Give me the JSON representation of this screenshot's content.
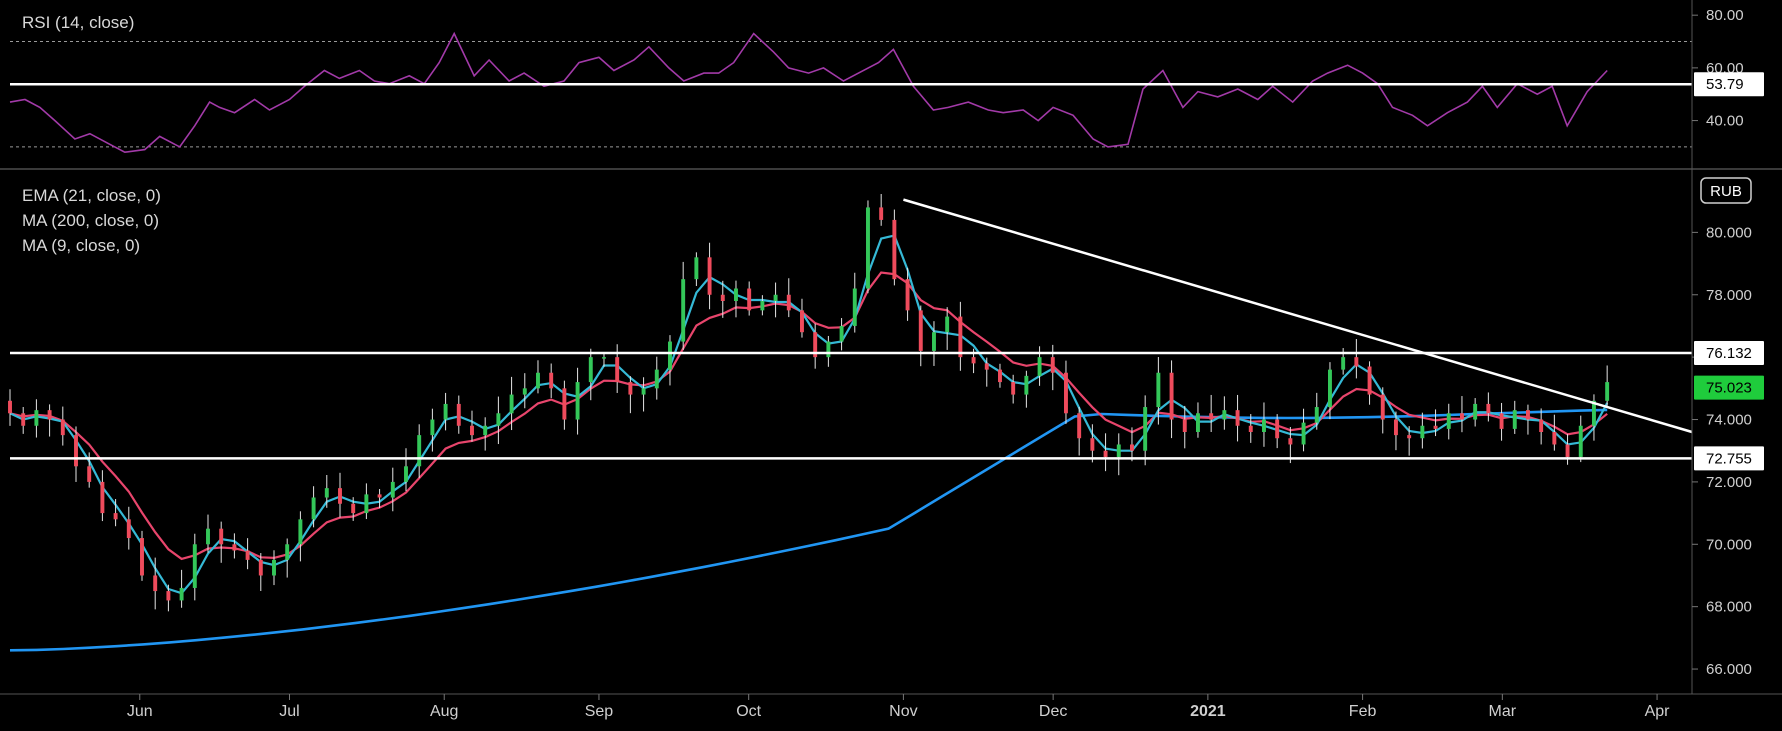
{
  "chart_data": [
    {
      "type": "line",
      "panel": "rsi",
      "indicator_label": "RSI (14, close)",
      "ylim": [
        22,
        85
      ],
      "y_ticks": [
        "80.00",
        "60.00",
        "40.00"
      ],
      "y_tick_values": [
        80,
        60,
        40
      ],
      "upper_band": 70,
      "lower_band": 30,
      "level_line": {
        "value": 53.79,
        "label": "53.79"
      },
      "line_color": "#a23aa8",
      "series": [
        {
          "x": [
            "2020-05-06",
            "2020-05-09",
            "2020-05-12",
            "2020-05-15",
            "2020-05-19",
            "2020-05-22",
            "2020-05-26",
            "2020-05-29",
            "2020-06-02",
            "2020-06-05",
            "2020-06-09",
            "2020-06-12",
            "2020-06-15",
            "2020-06-17",
            "2020-06-20",
            "2020-06-24",
            "2020-06-27",
            "2020-07-01",
            "2020-07-04",
            "2020-07-08",
            "2020-07-11",
            "2020-07-15",
            "2020-07-18",
            "2020-07-21",
            "2020-07-25",
            "2020-07-28",
            "2020-07-31",
            "2020-08-03",
            "2020-08-07",
            "2020-08-10",
            "2020-08-14",
            "2020-08-17",
            "2020-08-21",
            "2020-08-25",
            "2020-08-28",
            "2020-09-01",
            "2020-09-04",
            "2020-09-08",
            "2020-09-11",
            "2020-09-15",
            "2020-09-18",
            "2020-09-22",
            "2020-09-25",
            "2020-09-28",
            "2020-10-02",
            "2020-10-06",
            "2020-10-09",
            "2020-10-13",
            "2020-10-16",
            "2020-10-20",
            "2020-10-23",
            "2020-10-27",
            "2020-10-30",
            "2020-11-03",
            "2020-11-07",
            "2020-11-10",
            "2020-11-14",
            "2020-11-18",
            "2020-11-21",
            "2020-11-25",
            "2020-11-28",
            "2020-12-01",
            "2020-12-05",
            "2020-12-09",
            "2020-12-12",
            "2020-12-16",
            "2020-12-19",
            "2020-12-23",
            "2020-12-27",
            "2020-12-30",
            "2021-01-03",
            "2021-01-07",
            "2021-01-11",
            "2021-01-14",
            "2021-01-18",
            "2021-01-22",
            "2021-01-25",
            "2021-01-29",
            "2021-02-01",
            "2021-02-04",
            "2021-02-07",
            "2021-02-11",
            "2021-02-14",
            "2021-02-18",
            "2021-02-22",
            "2021-02-25",
            "2021-02-28",
            "2021-03-04",
            "2021-03-08",
            "2021-03-11",
            "2021-03-14",
            "2021-03-18",
            "2021-03-22"
          ],
          "y": [
            47,
            48,
            45,
            40,
            33,
            35,
            31,
            28,
            29,
            34,
            30,
            38,
            47,
            45,
            43,
            48,
            44,
            48,
            53,
            59,
            56,
            59,
            55,
            54,
            57,
            54,
            62,
            73,
            57,
            63,
            55,
            58,
            53,
            55,
            62,
            64,
            59,
            63,
            68,
            60,
            55,
            58,
            58,
            62,
            73,
            66,
            60,
            58,
            60,
            55,
            58,
            62,
            67,
            53,
            44,
            45,
            47,
            44,
            43,
            44,
            40,
            45,
            42,
            33,
            30,
            31,
            52,
            59,
            45,
            51,
            49,
            52,
            48,
            53,
            47,
            55,
            58,
            61,
            58,
            54,
            45,
            42,
            38,
            43,
            47,
            53,
            45,
            54,
            50,
            53,
            38,
            51,
            59
          ]
        }
      ]
    },
    {
      "type": "candlestick",
      "panel": "price",
      "indicator_labels": [
        "EMA (21, close, 0)",
        "MA (200, close, 0)",
        "MA (9, close, 0)"
      ],
      "currency": "RUB",
      "ylim": [
        65.2,
        82.0
      ],
      "y_ticks": [
        "80.000",
        "78.000",
        "76.000",
        "74.000",
        "72.000",
        "70.000",
        "68.000",
        "66.000"
      ],
      "y_tick_values": [
        80,
        78,
        76,
        74,
        72,
        70,
        68,
        66
      ],
      "x_ticks": [
        {
          "label": "Jun",
          "x": "2020-06-01"
        },
        {
          "label": "Jul",
          "x": "2020-07-01"
        },
        {
          "label": "Aug",
          "x": "2020-08-01"
        },
        {
          "label": "Sep",
          "x": "2020-09-01"
        },
        {
          "label": "Oct",
          "x": "2020-10-01"
        },
        {
          "label": "Nov",
          "x": "2020-11-01"
        },
        {
          "label": "Dec",
          "x": "2020-12-01"
        },
        {
          "label": "2021",
          "x": "2021-01-01"
        },
        {
          "label": "Feb",
          "x": "2021-02-01"
        },
        {
          "label": "Mar",
          "x": "2021-03-01"
        },
        {
          "label": "Apr",
          "x": "2021-04-01"
        }
      ],
      "x_range": [
        "2020-05-06",
        "2021-04-08"
      ],
      "levels": [
        {
          "value": 76.132,
          "label": "76.132"
        },
        {
          "value": 72.755,
          "label": "72.755"
        }
      ],
      "last_price": {
        "value": 75.023,
        "label": "75.023"
      },
      "trendline": {
        "x": [
          "2020-11-01",
          "2021-04-08"
        ],
        "y": [
          81.05,
          73.6
        ]
      },
      "colors": {
        "up": "#34c759",
        "down": "#ef4b5c",
        "ema21": "#e8456c",
        "ma200": "#2196f3",
        "ma9": "#35b9d6",
        "last": "#1fcc3c"
      },
      "candles_close": [
        74.2,
        73.8,
        74.3,
        74.0,
        73.5,
        72.5,
        72.0,
        71.0,
        70.8,
        70.2,
        69.0,
        68.5,
        68.2,
        68.6,
        70.0,
        70.5,
        70.0,
        69.8,
        69.5,
        69.0,
        69.5,
        70.0,
        70.8,
        71.5,
        71.8,
        71.3,
        71.0,
        71.6,
        71.5,
        72.0,
        72.5,
        73.5,
        74.0,
        74.5,
        73.8,
        73.5,
        73.8,
        74.2,
        74.8,
        75.0,
        75.5,
        75.0,
        74.0,
        75.2,
        76.0,
        76.0,
        75.2,
        74.8,
        75.0,
        75.6,
        76.5,
        78.5,
        79.2,
        78.0,
        77.8,
        78.2,
        77.5,
        77.8,
        78.0,
        77.5,
        76.8,
        76.0,
        76.5,
        77.0,
        78.2,
        80.8,
        80.4,
        78.5,
        77.5,
        76.2,
        76.8,
        77.3,
        76.0,
        75.8,
        75.6,
        75.2,
        74.8,
        75.4,
        76.0,
        75.5,
        74.2,
        73.4,
        73.0,
        72.8,
        73.2,
        73.0,
        74.4,
        75.5,
        74.0,
        73.6,
        74.2,
        74.0,
        74.3,
        73.8,
        73.6,
        74.0,
        73.4,
        73.2,
        73.9,
        74.4,
        75.6,
        76.0,
        75.7,
        74.8,
        74.0,
        73.5,
        73.4,
        73.8,
        73.7,
        74.2,
        74.0,
        74.5,
        74.2,
        73.7,
        74.3,
        74.0,
        73.6,
        73.2,
        72.8,
        73.8,
        74.6,
        75.2
      ]
    }
  ]
}
